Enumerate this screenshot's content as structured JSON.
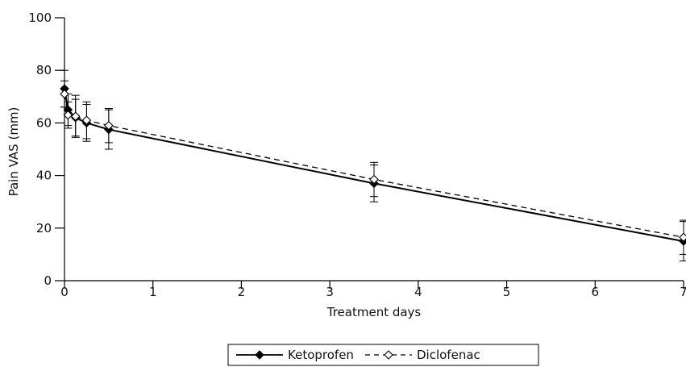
{
  "chart_data": {
    "type": "line",
    "title": "",
    "xlabel": "Treatment days",
    "ylabel": "Pain VAS (mm)",
    "xlim": [
      0,
      7
    ],
    "ylim": [
      0,
      100
    ],
    "x_ticks": [
      0,
      1,
      2,
      3,
      4,
      5,
      6,
      7
    ],
    "y_ticks": [
      0,
      20,
      40,
      60,
      80,
      100
    ],
    "grid": false,
    "legend_position": "bottom-center",
    "series": [
      {
        "name": "Ketoprofen",
        "line_style": "solid",
        "marker": "filled-diamond",
        "color": "#000000",
        "points": [
          {
            "x": 0,
            "y": 73,
            "err": 7
          },
          {
            "x": 0.04,
            "y": 65,
            "err": 6
          },
          {
            "x": 0.125,
            "y": 62,
            "err": 7
          },
          {
            "x": 0.25,
            "y": 60,
            "err": 7
          },
          {
            "x": 0.5,
            "y": 57.5,
            "err": 7.5
          },
          {
            "x": 3.5,
            "y": 37,
            "err": 7
          },
          {
            "x": 7,
            "y": 15,
            "err": 7.5
          }
        ]
      },
      {
        "name": "Diclofenac",
        "line_style": "dashed",
        "marker": "open-diamond",
        "color": "#000000",
        "points": [
          {
            "x": 0,
            "y": 71,
            "err": 5
          },
          {
            "x": 0.04,
            "y": 63,
            "err": 5
          },
          {
            "x": 0.125,
            "y": 62.5,
            "err": 8
          },
          {
            "x": 0.25,
            "y": 61,
            "err": 7
          },
          {
            "x": 0.5,
            "y": 59,
            "err": 6.5
          },
          {
            "x": 3.5,
            "y": 38.5,
            "err": 6.5
          },
          {
            "x": 7,
            "y": 16.5,
            "err": 6.5
          }
        ]
      }
    ]
  }
}
